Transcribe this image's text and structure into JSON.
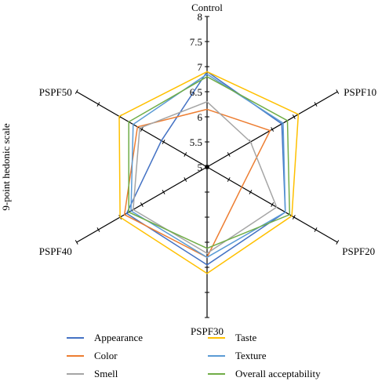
{
  "chart_data": {
    "type": "radar",
    "ylabel": "9-point hedonic scale",
    "categories": [
      "Control",
      "PSPF10",
      "PSPF20",
      "PSPF30",
      "PSPF40",
      "PSPF50"
    ],
    "rlim": [
      5,
      8
    ],
    "ticks": [
      "5",
      "5.5",
      "6",
      "6.5",
      "7",
      "7.5",
      "8"
    ],
    "grid": true,
    "legend_position": "bottom",
    "series": [
      {
        "name": "Appearance",
        "color": "#4472c4",
        "values": [
          6.9,
          6.72,
          6.8,
          6.95,
          6.85,
          6.05
        ]
      },
      {
        "name": "Color",
        "color": "#ed7d31",
        "values": [
          6.15,
          6.45,
          5.8,
          6.8,
          6.9,
          6.6
        ]
      },
      {
        "name": "Smell",
        "color": "#a5a5a5",
        "values": [
          6.3,
          6.0,
          6.6,
          6.72,
          6.7,
          6.55
        ]
      },
      {
        "name": "Taste",
        "color": "#ffc000",
        "values": [
          6.9,
          7.1,
          6.95,
          7.12,
          7.0,
          7.02
        ]
      },
      {
        "name": "Texture",
        "color": "#5b9bd5",
        "values": [
          6.85,
          6.75,
          6.8,
          6.8,
          6.75,
          6.7
        ]
      },
      {
        "name": "Overall acceptability",
        "color": "#70ad47",
        "values": [
          6.8,
          6.85,
          6.9,
          6.62,
          6.8,
          6.8
        ]
      }
    ]
  }
}
